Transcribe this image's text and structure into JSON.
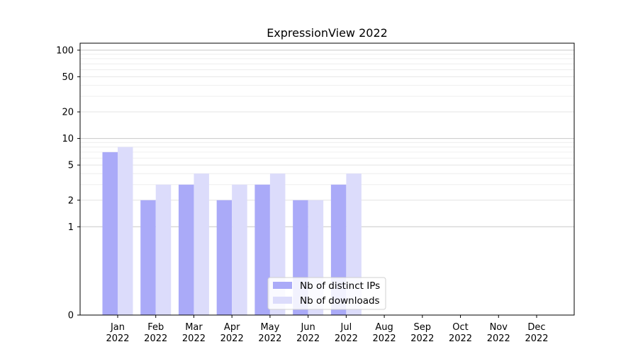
{
  "chart_data": {
    "type": "bar",
    "title": "ExpressionView 2022",
    "xlabel": "",
    "ylabel": "",
    "yscale": "symlog",
    "ylim": [
      0,
      120
    ],
    "y_ticks": [
      0,
      1,
      2,
      5,
      10,
      20,
      50,
      100
    ],
    "categories": [
      "Jan\n2022",
      "Feb\n2022",
      "Mar\n2022",
      "Apr\n2022",
      "May\n2022",
      "Jun\n2022",
      "Jul\n2022",
      "Aug\n2022",
      "Sep\n2022",
      "Oct\n2022",
      "Nov\n2022",
      "Dec\n2022"
    ],
    "category_lines": [
      [
        "Jan",
        "2022"
      ],
      [
        "Feb",
        "2022"
      ],
      [
        "Mar",
        "2022"
      ],
      [
        "Apr",
        "2022"
      ],
      [
        "May",
        "2022"
      ],
      [
        "Jun",
        "2022"
      ],
      [
        "Jul",
        "2022"
      ],
      [
        "Aug",
        "2022"
      ],
      [
        "Sep",
        "2022"
      ],
      [
        "Oct",
        "2022"
      ],
      [
        "Nov",
        "2022"
      ],
      [
        "Dec",
        "2022"
      ]
    ],
    "series": [
      {
        "name": "Nb of distinct IPs",
        "color": "#aaaaf8",
        "values": [
          7,
          2,
          3,
          2,
          3,
          2,
          3,
          0,
          0,
          0,
          0,
          0
        ]
      },
      {
        "name": "Nb of downloads",
        "color": "#dcdcfb",
        "values": [
          8,
          3,
          4,
          3,
          4,
          2,
          4,
          0,
          0,
          0,
          0,
          0
        ]
      }
    ],
    "legend": "lower-center",
    "grid": true
  }
}
